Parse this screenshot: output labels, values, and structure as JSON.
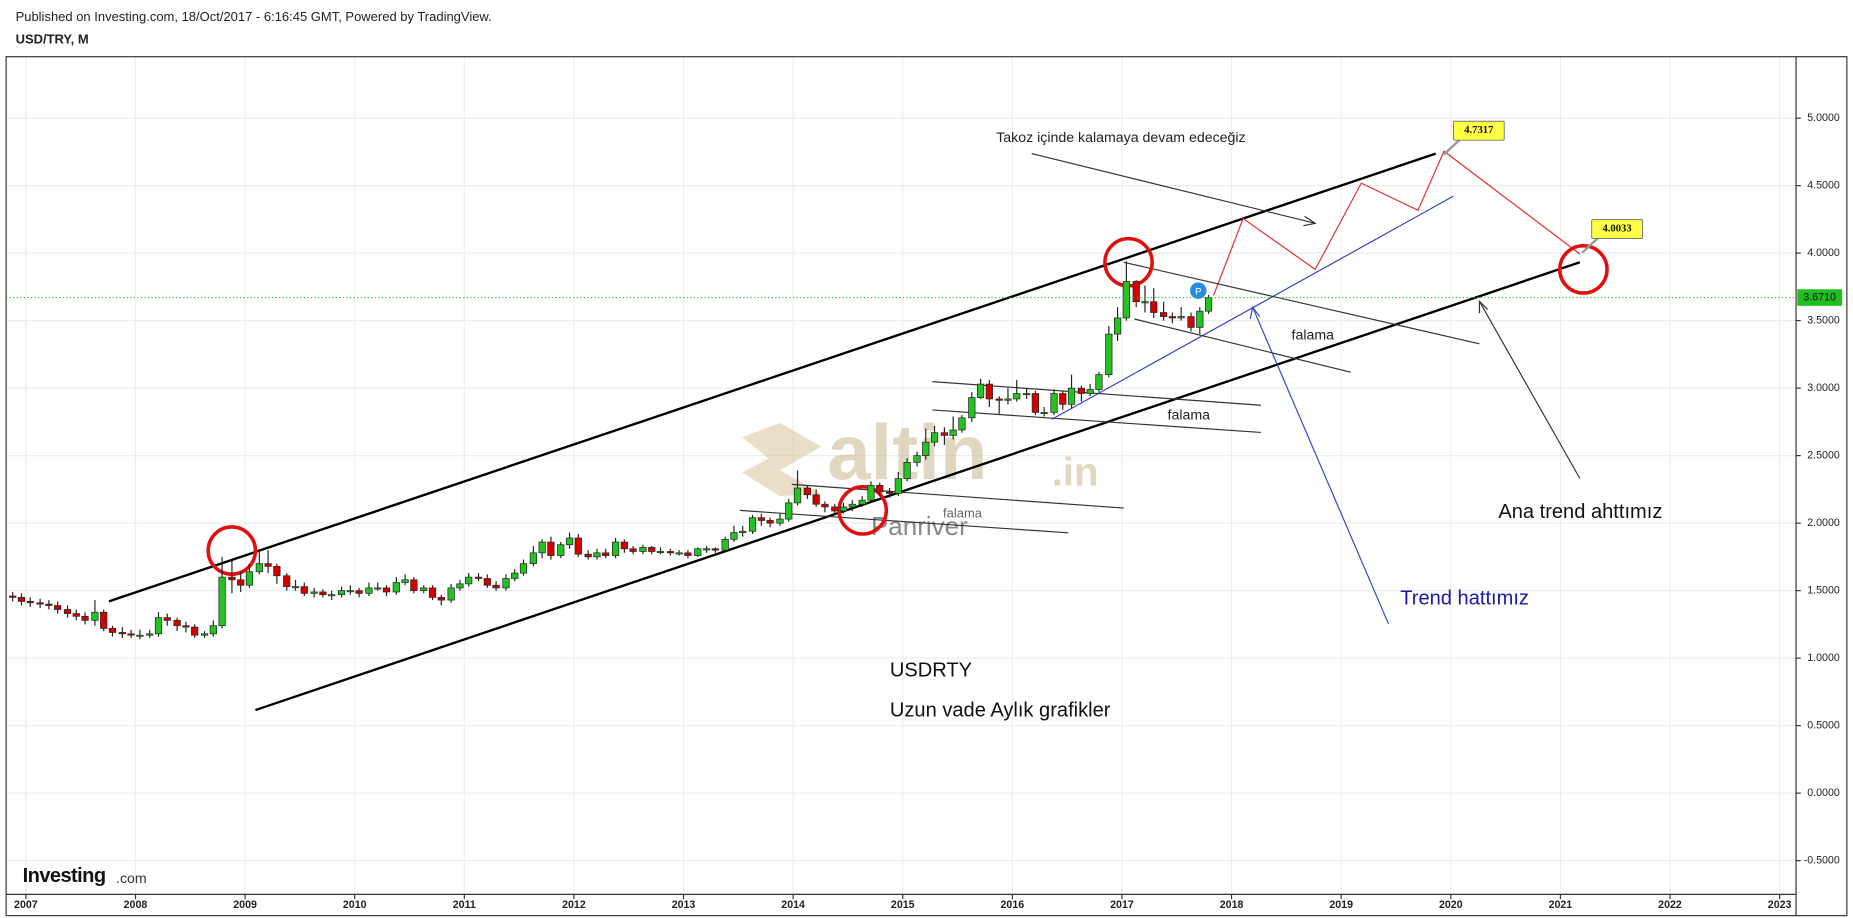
{
  "header": {
    "published": "Published on Investing.com, 18/Oct/2017 - 6:16:45 GMT, Powered by TradingView.",
    "symbol": "USD/TRY, M"
  },
  "chart_data": {
    "type": "candlestick",
    "up_color": "#22c322",
    "down_color": "#d40000",
    "x": [
      2006.88,
      2006.96,
      2007.04,
      2007.13,
      2007.21,
      2007.29,
      2007.38,
      2007.46,
      2007.54,
      2007.63,
      2007.71,
      2007.79,
      2007.88,
      2007.96,
      2008.04,
      2008.13,
      2008.21,
      2008.29,
      2008.38,
      2008.46,
      2008.54,
      2008.63,
      2008.71,
      2008.79,
      2008.88,
      2008.96,
      2009.04,
      2009.13,
      2009.21,
      2009.29,
      2009.38,
      2009.46,
      2009.54,
      2009.63,
      2009.71,
      2009.79,
      2009.88,
      2009.96,
      2010.04,
      2010.13,
      2010.21,
      2010.29,
      2010.38,
      2010.46,
      2010.54,
      2010.63,
      2010.71,
      2010.79,
      2010.88,
      2010.96,
      2011.04,
      2011.13,
      2011.21,
      2011.29,
      2011.38,
      2011.46,
      2011.54,
      2011.63,
      2011.71,
      2011.79,
      2011.88,
      2011.96,
      2012.04,
      2012.13,
      2012.21,
      2012.29,
      2012.38,
      2012.46,
      2012.54,
      2012.63,
      2012.71,
      2012.79,
      2012.88,
      2012.96,
      2013.04,
      2013.13,
      2013.21,
      2013.29,
      2013.38,
      2013.46,
      2013.54,
      2013.63,
      2013.71,
      2013.79,
      2013.88,
      2013.96,
      2014.04,
      2014.13,
      2014.21,
      2014.29,
      2014.38,
      2014.46,
      2014.54,
      2014.63,
      2014.71,
      2014.79,
      2014.88,
      2014.96,
      2015.04,
      2015.13,
      2015.21,
      2015.29,
      2015.38,
      2015.46,
      2015.54,
      2015.63,
      2015.71,
      2015.79,
      2015.88,
      2015.96,
      2016.04,
      2016.13,
      2016.21,
      2016.29,
      2016.38,
      2016.46,
      2016.54,
      2016.63,
      2016.71,
      2016.79,
      2016.88,
      2016.96,
      2017.04,
      2017.13,
      2017.21,
      2017.29,
      2017.38,
      2017.46,
      2017.54,
      2017.63,
      2017.71,
      2017.79
    ],
    "open": [
      1.46,
      1.45,
      1.42,
      1.41,
      1.4,
      1.39,
      1.36,
      1.33,
      1.31,
      1.28,
      1.34,
      1.22,
      1.19,
      1.18,
      1.17,
      1.17,
      1.18,
      1.3,
      1.28,
      1.24,
      1.23,
      1.17,
      1.18,
      1.24,
      1.6,
      1.58,
      1.54,
      1.64,
      1.7,
      1.68,
      1.61,
      1.53,
      1.53,
      1.48,
      1.49,
      1.47,
      1.47,
      1.5,
      1.5,
      1.48,
      1.52,
      1.52,
      1.49,
      1.56,
      1.58,
      1.5,
      1.52,
      1.45,
      1.43,
      1.52,
      1.55,
      1.6,
      1.59,
      1.54,
      1.52,
      1.59,
      1.63,
      1.7,
      1.78,
      1.86,
      1.76,
      1.84,
      1.89,
      1.77,
      1.75,
      1.78,
      1.76,
      1.86,
      1.81,
      1.79,
      1.82,
      1.79,
      1.79,
      1.78,
      1.78,
      1.76,
      1.81,
      1.81,
      1.8,
      1.88,
      1.93,
      1.94,
      2.04,
      2.02,
      2.0,
      2.03,
      2.15,
      2.26,
      2.21,
      2.14,
      2.12,
      2.09,
      2.12,
      2.14,
      2.17,
      2.28,
      2.23,
      2.22,
      2.33,
      2.45,
      2.5,
      2.6,
      2.67,
      2.65,
      2.69,
      2.78,
      2.93,
      3.03,
      2.92,
      2.91,
      2.92,
      2.96,
      2.96,
      2.82,
      2.82,
      2.96,
      2.88,
      3.0,
      2.96,
      2.99,
      3.1,
      3.4,
      3.52,
      3.79,
      3.64,
      3.64,
      3.56,
      3.53,
      3.52,
      3.53,
      3.45,
      3.57
    ],
    "high": [
      1.49,
      1.48,
      1.45,
      1.44,
      1.43,
      1.42,
      1.39,
      1.36,
      1.34,
      1.43,
      1.36,
      1.24,
      1.23,
      1.21,
      1.21,
      1.21,
      1.34,
      1.33,
      1.3,
      1.27,
      1.25,
      1.2,
      1.28,
      1.75,
      1.72,
      1.64,
      1.7,
      1.8,
      1.8,
      1.7,
      1.63,
      1.58,
      1.56,
      1.52,
      1.51,
      1.5,
      1.53,
      1.54,
      1.52,
      1.56,
      1.56,
      1.54,
      1.6,
      1.62,
      1.6,
      1.54,
      1.54,
      1.47,
      1.55,
      1.58,
      1.63,
      1.63,
      1.62,
      1.57,
      1.62,
      1.66,
      1.73,
      1.83,
      1.88,
      1.9,
      1.86,
      1.93,
      1.92,
      1.8,
      1.81,
      1.81,
      1.89,
      1.88,
      1.83,
      1.84,
      1.83,
      1.82,
      1.81,
      1.8,
      1.8,
      1.82,
      1.83,
      1.82,
      1.9,
      1.98,
      1.98,
      2.06,
      2.07,
      2.04,
      2.07,
      2.18,
      2.39,
      2.28,
      2.25,
      2.16,
      2.14,
      2.15,
      2.17,
      2.2,
      2.31,
      2.3,
      2.26,
      2.38,
      2.48,
      2.53,
      2.7,
      2.72,
      2.71,
      2.79,
      2.8,
      2.97,
      3.07,
      3.06,
      2.94,
      3.0,
      3.06,
      3.0,
      2.98,
      2.86,
      2.99,
      2.98,
      3.1,
      3.02,
      3.03,
      3.12,
      3.46,
      3.6,
      3.94,
      3.8,
      3.76,
      3.74,
      3.64,
      3.56,
      3.6,
      3.56,
      3.6,
      3.69
    ],
    "low": [
      1.42,
      1.39,
      1.38,
      1.37,
      1.36,
      1.33,
      1.3,
      1.28,
      1.25,
      1.24,
      1.2,
      1.16,
      1.15,
      1.15,
      1.14,
      1.15,
      1.16,
      1.24,
      1.2,
      1.19,
      1.15,
      1.15,
      1.16,
      1.22,
      1.48,
      1.49,
      1.52,
      1.62,
      1.63,
      1.55,
      1.5,
      1.5,
      1.46,
      1.45,
      1.45,
      1.43,
      1.45,
      1.47,
      1.45,
      1.46,
      1.5,
      1.46,
      1.47,
      1.54,
      1.48,
      1.48,
      1.43,
      1.39,
      1.41,
      1.5,
      1.53,
      1.57,
      1.52,
      1.5,
      1.5,
      1.57,
      1.61,
      1.68,
      1.74,
      1.73,
      1.74,
      1.81,
      1.75,
      1.73,
      1.73,
      1.74,
      1.74,
      1.78,
      1.77,
      1.77,
      1.77,
      1.77,
      1.76,
      1.76,
      1.74,
      1.75,
      1.78,
      1.78,
      1.79,
      1.86,
      1.9,
      1.92,
      1.98,
      1.97,
      1.98,
      2.01,
      2.13,
      2.18,
      2.12,
      2.08,
      2.06,
      2.07,
      2.09,
      2.12,
      2.16,
      2.2,
      2.19,
      2.2,
      2.31,
      2.42,
      2.47,
      2.57,
      2.58,
      2.62,
      2.67,
      2.75,
      2.92,
      2.86,
      2.81,
      2.88,
      2.9,
      2.92,
      2.8,
      2.79,
      2.8,
      2.84,
      2.85,
      2.9,
      2.94,
      2.97,
      3.08,
      3.35,
      3.5,
      3.6,
      3.56,
      3.52,
      3.5,
      3.48,
      3.5,
      3.42,
      3.4,
      3.55
    ],
    "close": [
      1.45,
      1.42,
      1.41,
      1.4,
      1.39,
      1.36,
      1.33,
      1.31,
      1.28,
      1.34,
      1.22,
      1.19,
      1.18,
      1.17,
      1.17,
      1.18,
      1.3,
      1.28,
      1.24,
      1.23,
      1.17,
      1.18,
      1.24,
      1.6,
      1.58,
      1.54,
      1.64,
      1.7,
      1.68,
      1.61,
      1.53,
      1.53,
      1.48,
      1.49,
      1.47,
      1.47,
      1.5,
      1.5,
      1.48,
      1.52,
      1.52,
      1.49,
      1.56,
      1.58,
      1.5,
      1.52,
      1.45,
      1.43,
      1.52,
      1.55,
      1.6,
      1.59,
      1.54,
      1.52,
      1.59,
      1.63,
      1.7,
      1.78,
      1.86,
      1.76,
      1.84,
      1.89,
      1.77,
      1.75,
      1.78,
      1.76,
      1.86,
      1.81,
      1.79,
      1.82,
      1.79,
      1.79,
      1.78,
      1.78,
      1.76,
      1.81,
      1.81,
      1.8,
      1.88,
      1.93,
      1.94,
      2.04,
      2.02,
      2.0,
      2.03,
      2.15,
      2.26,
      2.21,
      2.14,
      2.12,
      2.09,
      2.12,
      2.14,
      2.17,
      2.28,
      2.23,
      2.22,
      2.33,
      2.45,
      2.5,
      2.6,
      2.67,
      2.65,
      2.69,
      2.78,
      2.93,
      3.03,
      2.92,
      2.91,
      2.92,
      2.96,
      2.96,
      2.82,
      2.82,
      2.96,
      2.88,
      3.0,
      2.96,
      2.99,
      3.1,
      3.4,
      3.52,
      3.79,
      3.64,
      3.64,
      3.56,
      3.53,
      3.52,
      3.53,
      3.45,
      3.57,
      3.67
    ],
    "xlim": [
      2006.82,
      2023.15
    ],
    "xticks": [
      2007,
      2008,
      2009,
      2010,
      2011,
      2012,
      2013,
      2014,
      2015,
      2016,
      2017,
      2018,
      2019,
      2020,
      2021,
      2022,
      2023
    ],
    "ylim": [
      -0.75,
      5.455
    ],
    "yticks": [
      {
        "value": 5,
        "label": "5.0000"
      },
      {
        "value": 4.5,
        "label": "4.5000"
      },
      {
        "value": 4,
        "label": "4.0000"
      },
      {
        "value": 3.5,
        "label": "3.5000"
      },
      {
        "value": 3,
        "label": "3.0000"
      },
      {
        "value": 2.5,
        "label": "2.5000"
      },
      {
        "value": 2,
        "label": "2.0000"
      },
      {
        "value": 1.5,
        "label": "1.5000"
      },
      {
        "value": 1,
        "label": "1.0000"
      },
      {
        "value": 0.5,
        "label": "0.5000"
      },
      {
        "value": 0,
        "label": "0.0000"
      },
      {
        "value": -0.5,
        "label": "-0.5000"
      }
    ],
    "grid": true,
    "last_price": {
      "value": 3.671,
      "label": "3.6710",
      "color": "#1fbf1f"
    },
    "price_labels": [
      4.7317,
      4.0033
    ],
    "annotations": [
      "Takoz içinde kalamaya devam edeceğiz",
      "falama",
      "falama",
      "falama",
      "Ana trend ahttımız",
      "Trend hattımız",
      "USDRTY",
      "Uzun vade Aylık grafikler"
    ],
    "marker": "P",
    "watermark": [
      "altin",
      ".in",
      "Panriver"
    ],
    "logo": [
      "Investing",
      ".com"
    ]
  }
}
